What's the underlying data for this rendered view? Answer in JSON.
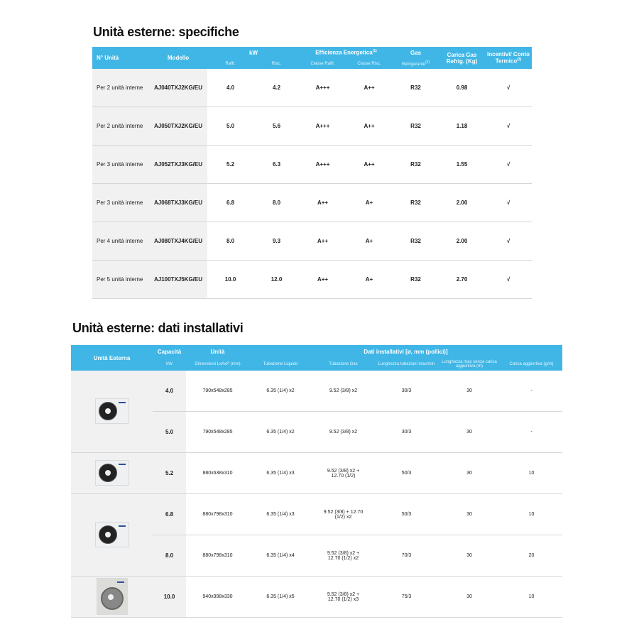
{
  "specifiche": {
    "title": "Unità esterne: specifiche",
    "headers": {
      "n_unita": "N° Unità",
      "modello": "Modello",
      "kw": "kW",
      "raffr": "Raffr.",
      "risc": "Risc.",
      "efficienza": "Efficienza Energetica",
      "eff_note": "(1)",
      "classe_raffr": "Classe Raffr.",
      "classe_risc": "Classe Risc.",
      "gas": "Gas",
      "refrigerante": "Refrigerante",
      "ref_note": "(2)",
      "carica": "Carica Gas Refrig. (Kg)",
      "incentivi": "Incentivi/ Conto Termico",
      "inc_note": "(3)"
    },
    "rows": [
      [
        "Per 2 unità interne",
        "AJ040TXJ2KG/EU",
        "4.0",
        "4.2",
        "A+++",
        "A++",
        "R32",
        "0.98",
        "√"
      ],
      [
        "Per 2 unità interne",
        "AJ050TXJ2KG/EU",
        "5.0",
        "5.6",
        "A+++",
        "A++",
        "R32",
        "1.18",
        "√"
      ],
      [
        "Per 3 unità interne",
        "AJ052TXJ3KG/EU",
        "5.2",
        "6.3",
        "A+++",
        "A++",
        "R32",
        "1.55",
        "√"
      ],
      [
        "Per 3 unità interne",
        "AJ068TXJ3KG/EU",
        "6.8",
        "8.0",
        "A++",
        "A+",
        "R32",
        "2.00",
        "√"
      ],
      [
        "Per 4 unità interne",
        "AJ080TXJ4KG/EU",
        "8.0",
        "9.3",
        "A++",
        "A+",
        "R32",
        "2.00",
        "√"
      ],
      [
        "Per 5 unità interne",
        "AJ100TXJ5KG/EU",
        "10.0",
        "12.0",
        "A++",
        "A+",
        "R32",
        "2.70",
        "√"
      ]
    ]
  },
  "installativi": {
    "title": "Unità esterne: dati installativi",
    "headers": {
      "unita_esterna": "Unità Esterna",
      "capacita": "Capacità",
      "kw": "kW",
      "unita": "Unità",
      "dimensioni": "Dimensioni LxAxP (mm)",
      "dati": "Dati installativi [ø, mm (pollici)]",
      "liquido": "Tubazione Liquido",
      "gas": "Tubazione Gas",
      "lunghezza": "Lunghezza tubazioni max/min",
      "max_senza": "Lunghezza max senza carica aggiuntiva (m)",
      "carica": "Carica aggiuntiva (g/m)"
    },
    "rows": [
      [
        "4.0",
        "790x548x285",
        "6.35 (1/4) x2",
        "9.52 (3/8) x2",
        "30/3",
        "30",
        "-"
      ],
      [
        "5.0",
        "790x548x285",
        "6.35 (1/4) x2",
        "9.52 (3/8) x2",
        "30/3",
        "30",
        "-"
      ],
      [
        "5.2",
        "880x638x310",
        "6.35 (1/4) x3",
        "9.52 (3/8) x2 + 12.70 (1/2)",
        "50/3",
        "30",
        "10"
      ],
      [
        "6.8",
        "880x798x310",
        "6.35 (1/4) x3",
        "9.52 (3/8) + 12.70 (1/2) x2",
        "50/3",
        "30",
        "10"
      ],
      [
        "8.0",
        "880x798x310",
        "6.35 (1/4) x4",
        "9.52 (3/8) x2 + 12.70 (1/2) x2",
        "70/3",
        "30",
        "20"
      ],
      [
        "10.0",
        "940x998x330",
        "6.35 (1/4) x5",
        "9.52 (3/8) x2 + 12.70 (1/2) x3",
        "75/3",
        "30",
        "10"
      ]
    ]
  }
}
